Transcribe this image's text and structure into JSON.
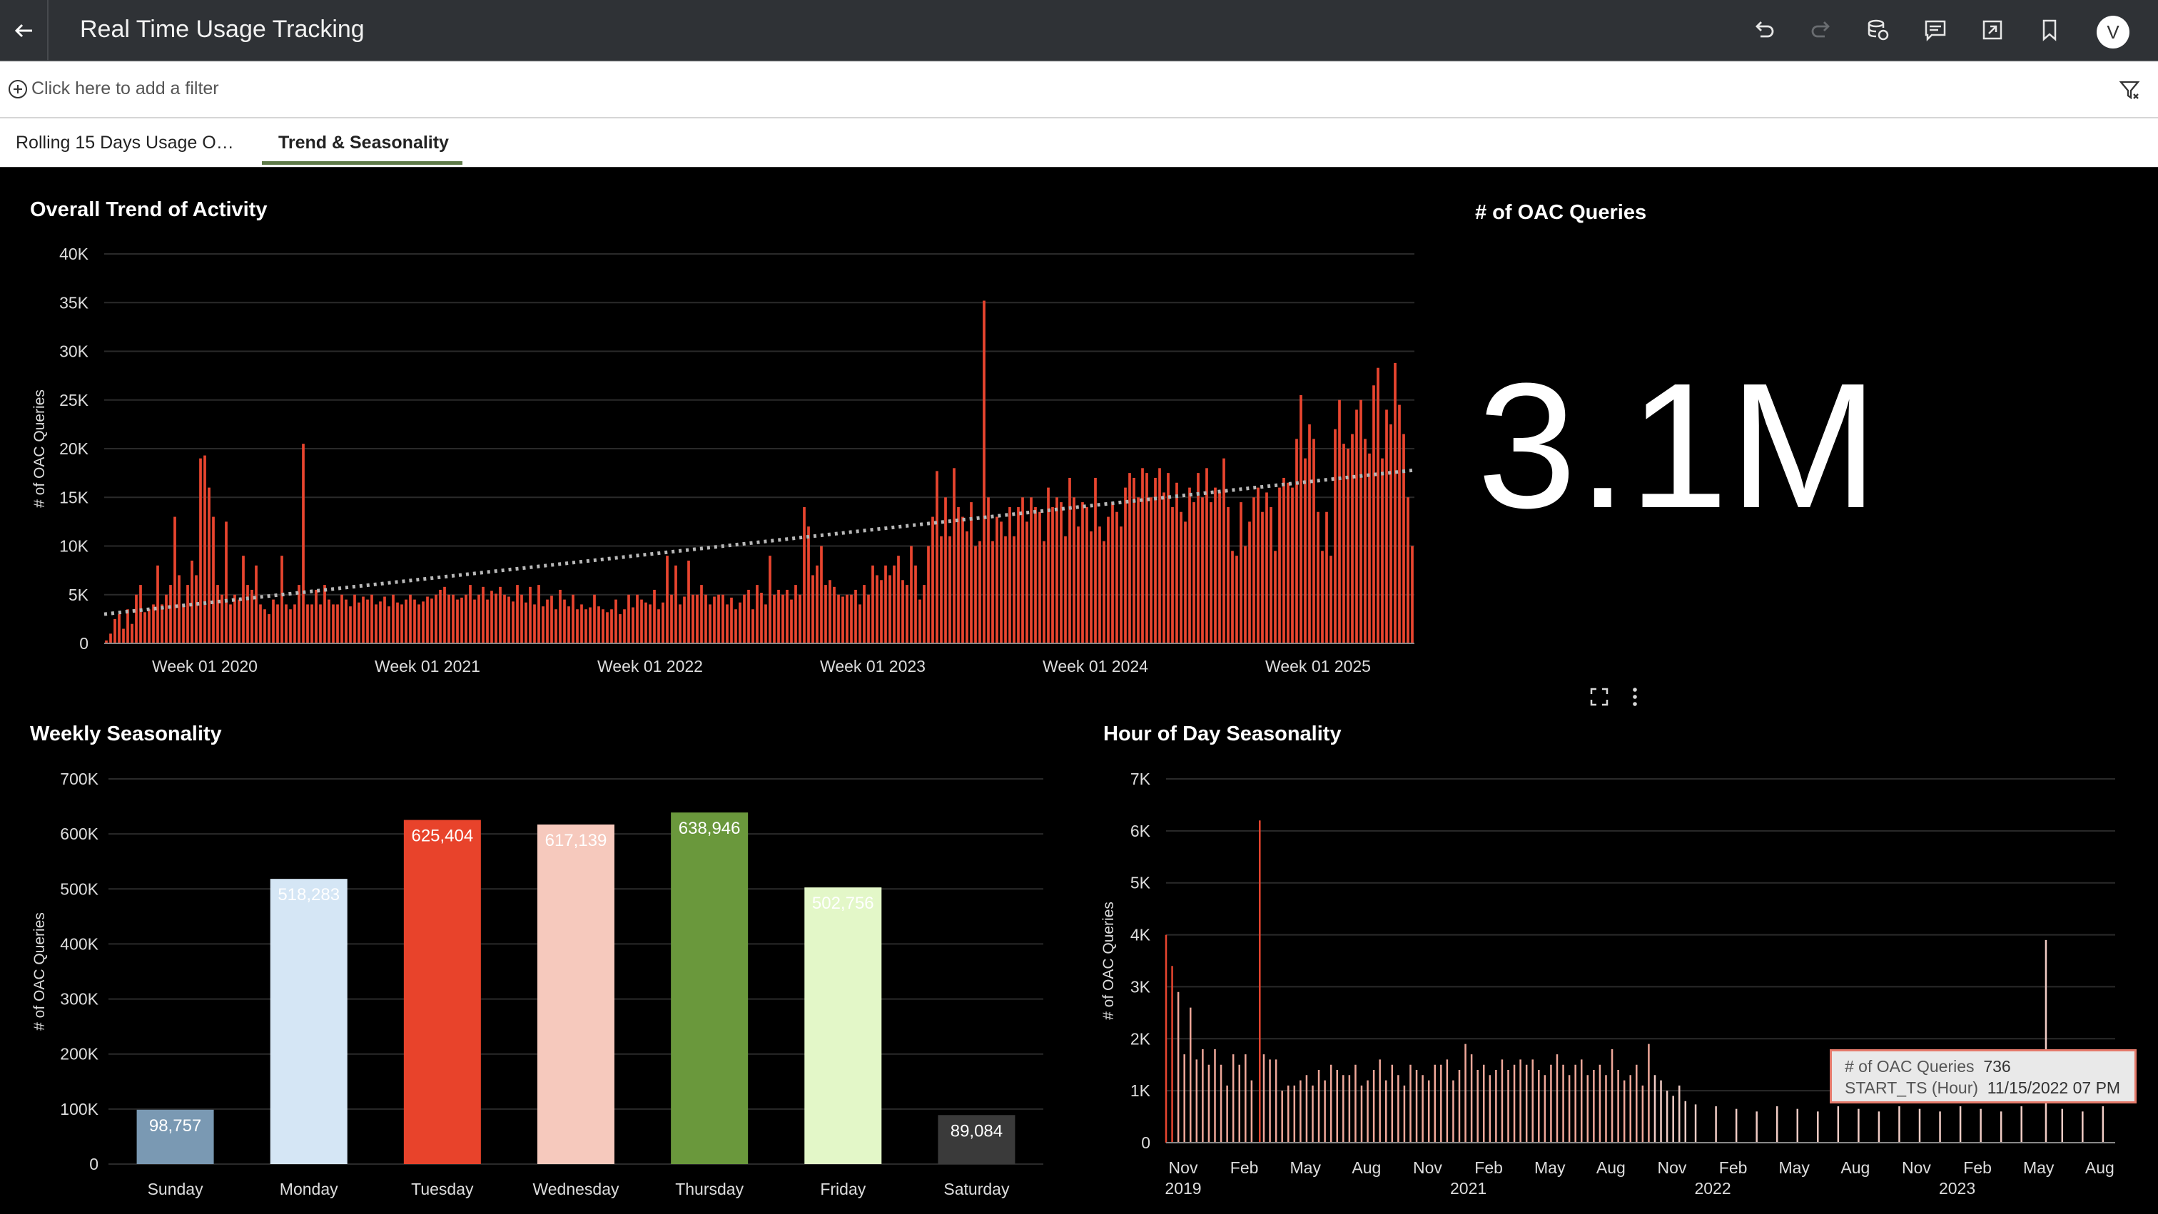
{
  "header": {
    "title": "Real Time Usage Tracking",
    "avatar_initial": "V",
    "icons": [
      "back-arrow-icon",
      "undo-icon",
      "redo-icon",
      "data-refresh-icon",
      "comments-icon",
      "export-icon",
      "bookmark-icon"
    ]
  },
  "filter_bar": {
    "placeholder": "Click here to add a filter"
  },
  "tabs": [
    {
      "label": "Rolling 15 Days Usage O…",
      "active": false
    },
    {
      "label": "Trend & Seasonality",
      "active": true
    }
  ],
  "colors": {
    "bar_red": "#e8452f",
    "trend_line": "#b8b8b8",
    "grid": "#2a2a2a",
    "tab_underline": "#5e7a48"
  },
  "kpi": {
    "title": "# of OAC Queries",
    "value": "3.1M"
  },
  "tooltip": {
    "rows": [
      {
        "key": "# of OAC Queries",
        "value": "736"
      },
      {
        "key": "START_TS (Hour)",
        "value": "11/15/2022 07 PM"
      }
    ]
  },
  "chart_data": [
    {
      "id": "overall-trend",
      "type": "bar",
      "title": "Overall Trend of Activity",
      "ylabel": "# of OAC Queries",
      "xlabel": "",
      "ylim": [
        0,
        40000
      ],
      "yticks": [
        "0",
        "5K",
        "10K",
        "15K",
        "20K",
        "25K",
        "30K",
        "35K",
        "40K"
      ],
      "ytick_values": [
        0,
        5000,
        10000,
        15000,
        20000,
        25000,
        30000,
        35000,
        40000
      ],
      "xticks": [
        "Week 01 2020",
        "Week 01 2021",
        "Week 01 2022",
        "Week 01 2023",
        "Week 01 2024",
        "Week 01 2025"
      ],
      "xtick_weeks": [
        23,
        75,
        127,
        179,
        231,
        283
      ],
      "trend": {
        "start": 3000,
        "end": 17800
      },
      "grid": true,
      "values": [
        300,
        1000,
        2500,
        3000,
        1500,
        3500,
        2000,
        5000,
        6000,
        3200,
        3500,
        4000,
        8000,
        4000,
        5000,
        6000,
        13000,
        7000,
        4000,
        6000,
        8500,
        7000,
        19000,
        19300,
        16000,
        13000,
        6000,
        5000,
        12500,
        4000,
        5000,
        4500,
        9000,
        6000,
        5500,
        8000,
        4000,
        3500,
        3000,
        4500,
        4000,
        9000,
        4000,
        3500,
        4000,
        6000,
        20500,
        4000,
        4000,
        5500,
        4000,
        6000,
        4500,
        4000,
        4000,
        5000,
        4500,
        3800,
        5000,
        4200,
        4800,
        4500,
        5000,
        4000,
        4300,
        4800,
        3800,
        5000,
        4200,
        4000,
        4500,
        5000,
        4500,
        4000,
        4300,
        4800,
        4600,
        5000,
        5500,
        5800,
        5000,
        5000,
        4500,
        4700,
        5000,
        6000,
        4500,
        5000,
        5800,
        4500,
        5400,
        5100,
        5800,
        5000,
        4800,
        4300,
        6000,
        5000,
        4200,
        5800,
        4000,
        6000,
        3800,
        4500,
        4900,
        3500,
        5500,
        4500,
        3800,
        5000,
        3500,
        4000,
        3500,
        3700,
        5000,
        3800,
        3500,
        3200,
        3500,
        4500,
        3000,
        3500,
        5000,
        3700,
        5000,
        4500,
        4200,
        4000,
        5500,
        3500,
        4200,
        9000,
        5000,
        8000,
        4000,
        4800,
        8500,
        5000,
        5000,
        6000,
        5000,
        4000,
        4800,
        5000,
        5000,
        4000,
        4700,
        3500,
        4200,
        5000,
        5500,
        3500,
        6000,
        5200,
        4000,
        9000,
        5000,
        5500,
        5000,
        5500,
        4500,
        6000,
        5000,
        14000,
        12000,
        7000,
        8000,
        10000,
        6000,
        6500,
        5800,
        5000,
        4800,
        5000,
        5000,
        5500,
        4000,
        6000,
        5000,
        8000,
        7000,
        6500,
        8000,
        7000,
        8000,
        9000,
        6500,
        6000,
        10000,
        8000,
        4500,
        6000,
        10000,
        13000,
        17700,
        11000,
        15000,
        11000,
        18000,
        14000,
        13000,
        11500,
        14500,
        10000,
        10500,
        35200,
        15000,
        10500,
        13000,
        12500,
        11000,
        14000,
        11000,
        14000,
        15000,
        12500,
        15000,
        14000,
        13500,
        10500,
        16000,
        14000,
        15000,
        14500,
        11000,
        17000,
        15000,
        12000,
        14500,
        14000,
        11500,
        17000,
        12000,
        10500,
        13000,
        14500,
        13500,
        12000,
        16000,
        17500,
        17000,
        15000,
        18000,
        17500,
        15000,
        17000,
        18000,
        15500,
        17500,
        14000,
        16500,
        13500,
        12500,
        16000,
        14500,
        17500,
        15000,
        18000,
        14500,
        16000,
        15500,
        19000,
        14000,
        9500,
        9000,
        14500,
        10000,
        12500,
        15000,
        16000,
        13500,
        15500,
        14000,
        9500,
        16000,
        17000,
        16500,
        16000,
        21000,
        25500,
        19000,
        22500,
        21000,
        13500,
        9500,
        13500,
        9000,
        22000,
        25000,
        20500,
        20000,
        21500,
        24000,
        25000,
        21000,
        19500,
        26500,
        28300,
        19000,
        24000,
        22500,
        28800,
        24500,
        21500,
        15000,
        10000
      ]
    },
    {
      "id": "weekly-seasonality",
      "type": "bar",
      "title": "Weekly Seasonality",
      "ylabel": "# of OAC Queries",
      "xlabel": "",
      "ylim": [
        0,
        700000
      ],
      "yticks": [
        "0",
        "100K",
        "200K",
        "300K",
        "400K",
        "500K",
        "600K",
        "700K"
      ],
      "ytick_values": [
        0,
        100000,
        200000,
        300000,
        400000,
        500000,
        600000,
        700000
      ],
      "grid": true,
      "categories": [
        "Sunday",
        "Monday",
        "Tuesday",
        "Wednesday",
        "Thursday",
        "Friday",
        "Saturday"
      ],
      "values": [
        98757,
        518283,
        625404,
        617139,
        638946,
        502756,
        89084
      ],
      "value_labels": [
        "98,757",
        "518,283",
        "625,404",
        "617,139",
        "638,946",
        "502,756",
        "89,084"
      ],
      "bar_colors": [
        "#7a99b3",
        "#d5e6f5",
        "#e8432b",
        "#f6c9bd",
        "#6a983c",
        "#e3f7c8",
        "#3a3a3a"
      ]
    },
    {
      "id": "hour-of-day-seasonality",
      "type": "bar",
      "title": "Hour of Day Seasonality",
      "ylabel": "# of OAC Queries",
      "xlabel": "",
      "ylim": [
        0,
        7000
      ],
      "yticks": [
        "0",
        "1K",
        "2K",
        "3K",
        "4K",
        "5K",
        "6K",
        "7K"
      ],
      "ytick_values": [
        0,
        1000,
        2000,
        3000,
        4000,
        5000,
        6000,
        7000
      ],
      "grid": true,
      "x_month_labels": [
        "Nov",
        "Feb",
        "May",
        "Aug",
        "Nov",
        "Feb",
        "May",
        "Aug",
        "Nov",
        "Feb",
        "May",
        "Aug",
        "Nov",
        "Feb",
        "May",
        "Aug"
      ],
      "x_month_index": [
        0,
        3,
        6,
        9,
        12,
        15,
        18,
        21,
        24,
        27,
        30,
        33,
        36,
        39,
        42,
        45
      ],
      "x_year_labels": [
        "2019",
        "2021",
        "2022",
        "2023"
      ],
      "x_year_month_index": [
        0,
        14,
        26,
        38
      ],
      "x_range_months": [
        0,
        46.6
      ],
      "spikes": [
        {
          "m": 0.0,
          "v": 4000
        },
        {
          "m": 0.3,
          "v": 3400
        },
        {
          "m": 0.6,
          "v": 2900
        },
        {
          "m": 0.9,
          "v": 1700
        },
        {
          "m": 1.2,
          "v": 2600
        },
        {
          "m": 1.5,
          "v": 1600
        },
        {
          "m": 1.8,
          "v": 1800
        },
        {
          "m": 2.1,
          "v": 1500
        },
        {
          "m": 2.4,
          "v": 1800
        },
        {
          "m": 2.7,
          "v": 1500
        },
        {
          "m": 3.0,
          "v": 1100
        },
        {
          "m": 3.3,
          "v": 1700
        },
        {
          "m": 3.6,
          "v": 1500
        },
        {
          "m": 3.9,
          "v": 1700
        },
        {
          "m": 4.2,
          "v": 1200
        },
        {
          "m": 4.6,
          "v": 6200
        },
        {
          "m": 4.8,
          "v": 1700
        },
        {
          "m": 5.1,
          "v": 1600
        },
        {
          "m": 5.4,
          "v": 1600
        },
        {
          "m": 5.7,
          "v": 1000
        },
        {
          "m": 6.0,
          "v": 1100
        },
        {
          "m": 6.3,
          "v": 1100
        },
        {
          "m": 6.6,
          "v": 1200
        },
        {
          "m": 6.9,
          "v": 1300
        },
        {
          "m": 7.2,
          "v": 1100
        },
        {
          "m": 7.5,
          "v": 1400
        },
        {
          "m": 7.8,
          "v": 1200
        },
        {
          "m": 8.1,
          "v": 1500
        },
        {
          "m": 8.4,
          "v": 1400
        },
        {
          "m": 8.7,
          "v": 1300
        },
        {
          "m": 9.0,
          "v": 1300
        },
        {
          "m": 9.3,
          "v": 1500
        },
        {
          "m": 9.6,
          "v": 1100
        },
        {
          "m": 9.9,
          "v": 1200
        },
        {
          "m": 10.2,
          "v": 1400
        },
        {
          "m": 10.5,
          "v": 1600
        },
        {
          "m": 10.8,
          "v": 1200
        },
        {
          "m": 11.1,
          "v": 1500
        },
        {
          "m": 11.4,
          "v": 1300
        },
        {
          "m": 11.7,
          "v": 1100
        },
        {
          "m": 12.0,
          "v": 1500
        },
        {
          "m": 12.3,
          "v": 1400
        },
        {
          "m": 12.6,
          "v": 1300
        },
        {
          "m": 12.9,
          "v": 1200
        },
        {
          "m": 13.2,
          "v": 1500
        },
        {
          "m": 13.5,
          "v": 1500
        },
        {
          "m": 13.8,
          "v": 1600
        },
        {
          "m": 14.1,
          "v": 1200
        },
        {
          "m": 14.4,
          "v": 1400
        },
        {
          "m": 14.7,
          "v": 1900
        },
        {
          "m": 15.0,
          "v": 1700
        },
        {
          "m": 15.3,
          "v": 1400
        },
        {
          "m": 15.6,
          "v": 1500
        },
        {
          "m": 15.9,
          "v": 1300
        },
        {
          "m": 16.2,
          "v": 1400
        },
        {
          "m": 16.5,
          "v": 1600
        },
        {
          "m": 16.8,
          "v": 1400
        },
        {
          "m": 17.1,
          "v": 1500
        },
        {
          "m": 17.4,
          "v": 1600
        },
        {
          "m": 17.7,
          "v": 1500
        },
        {
          "m": 18.0,
          "v": 1600
        },
        {
          "m": 18.3,
          "v": 1400
        },
        {
          "m": 18.6,
          "v": 1300
        },
        {
          "m": 18.9,
          "v": 1500
        },
        {
          "m": 19.2,
          "v": 1700
        },
        {
          "m": 19.5,
          "v": 1500
        },
        {
          "m": 19.8,
          "v": 1300
        },
        {
          "m": 20.1,
          "v": 1500
        },
        {
          "m": 20.4,
          "v": 1600
        },
        {
          "m": 20.7,
          "v": 1300
        },
        {
          "m": 21.0,
          "v": 1400
        },
        {
          "m": 21.3,
          "v": 1500
        },
        {
          "m": 21.6,
          "v": 1300
        },
        {
          "m": 21.9,
          "v": 1800
        },
        {
          "m": 22.2,
          "v": 1400
        },
        {
          "m": 22.5,
          "v": 1200
        },
        {
          "m": 22.8,
          "v": 1300
        },
        {
          "m": 23.1,
          "v": 1500
        },
        {
          "m": 23.4,
          "v": 1100
        },
        {
          "m": 23.7,
          "v": 1900
        },
        {
          "m": 24.0,
          "v": 1300
        },
        {
          "m": 24.3,
          "v": 1200
        },
        {
          "m": 24.6,
          "v": 1000
        },
        {
          "m": 24.9,
          "v": 900
        },
        {
          "m": 25.2,
          "v": 1100
        },
        {
          "m": 25.5,
          "v": 800
        },
        {
          "m": 26.0,
          "v": 736
        },
        {
          "m": 27.0,
          "v": 700
        },
        {
          "m": 28.0,
          "v": 650
        },
        {
          "m": 29.0,
          "v": 600
        },
        {
          "m": 30.0,
          "v": 700
        },
        {
          "m": 31.0,
          "v": 650
        },
        {
          "m": 32.0,
          "v": 600
        },
        {
          "m": 33.0,
          "v": 700
        },
        {
          "m": 34.0,
          "v": 650
        },
        {
          "m": 35.0,
          "v": 600
        },
        {
          "m": 36.0,
          "v": 700
        },
        {
          "m": 37.0,
          "v": 650
        },
        {
          "m": 38.0,
          "v": 600
        },
        {
          "m": 39.0,
          "v": 700
        },
        {
          "m": 40.0,
          "v": 650
        },
        {
          "m": 41.0,
          "v": 600
        },
        {
          "m": 42.0,
          "v": 700
        },
        {
          "m": 43.2,
          "v": 3900
        },
        {
          "m": 44.0,
          "v": 650
        },
        {
          "m": 45.0,
          "v": 600
        },
        {
          "m": 46.0,
          "v": 700
        }
      ]
    }
  ]
}
